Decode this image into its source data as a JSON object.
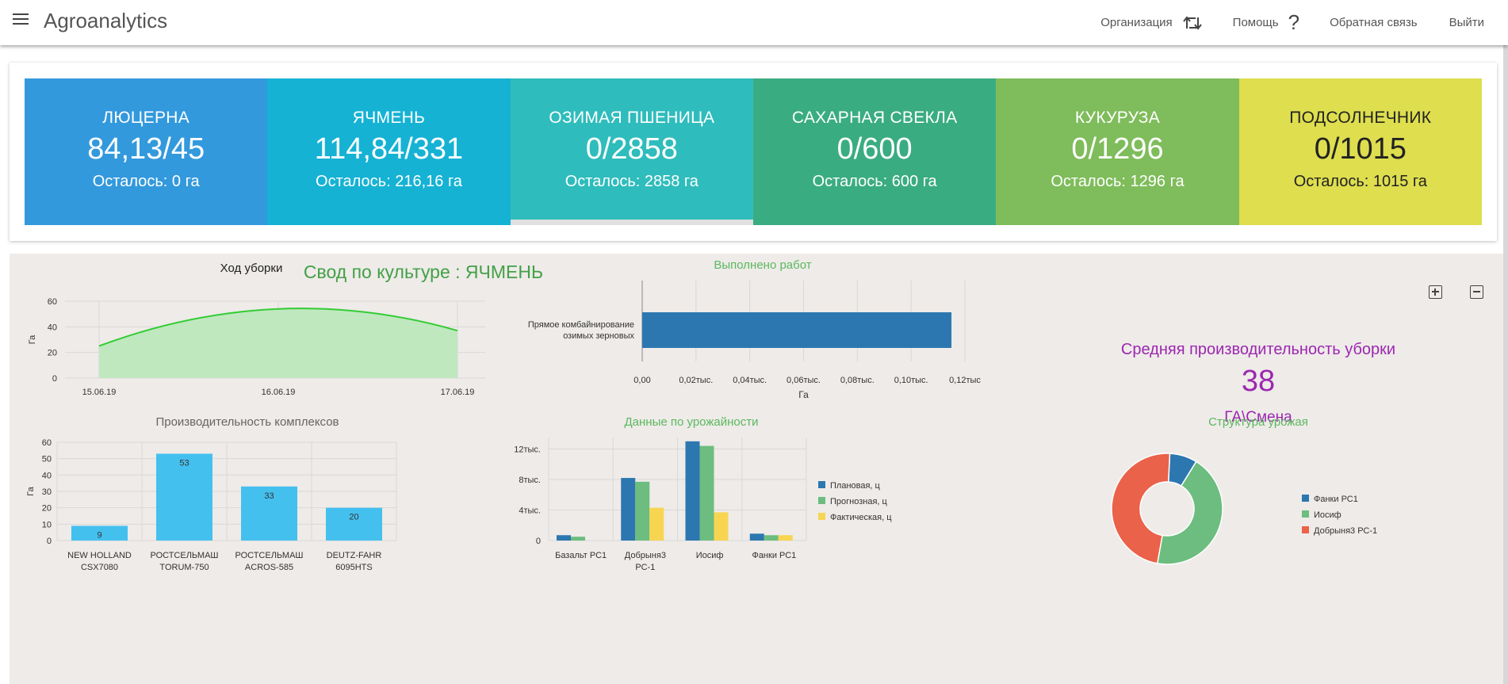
{
  "header": {
    "title": "Agroanalytics",
    "nav": {
      "org": "Организация",
      "help": "Помощь",
      "feedback": "Обратная связь",
      "exit": "Выйти"
    }
  },
  "tiles": [
    {
      "name": "ЛЮЦЕРНА",
      "value": "84,13/45",
      "rest": "Осталось: 0 га",
      "color": "#3399dd"
    },
    {
      "name": "ЯЧМЕНЬ",
      "value": "114,84/331",
      "rest": "Осталось: 216,16 га",
      "color": "#15b2d4"
    },
    {
      "name": "ОЗИМАЯ ПШЕНИЦА",
      "value": "0/2858",
      "rest": "Осталось: 2858 га",
      "color": "#2fbcbc"
    },
    {
      "name": "САХАРНАЯ СВЕКЛА",
      "value": "0/600",
      "rest": "Осталось: 600 га",
      "color": "#3aac82"
    },
    {
      "name": "КУКУРУЗА",
      "value": "0/1296",
      "rest": "Осталось: 1296 га",
      "color": "#7fbc5b"
    },
    {
      "name": "ПОДСОЛНЕЧНИК",
      "value": "0/1015",
      "rest": "Осталось: 1015 га",
      "color": "#dede4f"
    }
  ],
  "summary": {
    "title": "Свод по культуре : ЯЧМЕНЬ",
    "kpi": {
      "title": "Средняя производительность уборки",
      "value": "38",
      "unit": "ГА\\Смена"
    }
  },
  "chart_data": [
    {
      "type": "area",
      "title": "Ход уборки",
      "ylabel": "Га",
      "x": [
        "15.06.19",
        "16.06.19",
        "17.06.19"
      ],
      "y": [
        25,
        54,
        37
      ],
      "ylim": [
        0,
        60
      ],
      "yticks": [
        0,
        20,
        40,
        60
      ],
      "color": "#33cc33"
    },
    {
      "type": "bar",
      "orientation": "horizontal",
      "title": "Выполнено работ",
      "categories": [
        "Прямое комбайнирование озимых зерновых"
      ],
      "values": [
        115
      ],
      "xlabel": "Га",
      "xticks": [
        "0,00",
        "0,02тыс.",
        "0,04тыс.",
        "0,06тыс.",
        "0,08тыс.",
        "0,10тыс.",
        "0,12тыс"
      ],
      "xlim": [
        0,
        120
      ],
      "color": "#2c77b0"
    },
    {
      "type": "bar",
      "title": "Производительность комплексов",
      "ylabel": "Га",
      "categories": [
        "NEW HOLLAND CSX7080",
        "РОСТСЕЛЬМАШ TORUM-750",
        "РОСТСЕЛЬМАШ ACROS-585",
        "DEUTZ-FAHR 6095HTS"
      ],
      "values": [
        9,
        53,
        33,
        20
      ],
      "ylim": [
        0,
        60
      ],
      "yticks": [
        0,
        10,
        20,
        30,
        40,
        50,
        60
      ],
      "color": "#44c0ef"
    },
    {
      "type": "bar",
      "title": "Данные по урожайности",
      "categories": [
        "Базальт РС1",
        "Добрыня3 РС-1",
        "Иосиф",
        "Фанки РС1"
      ],
      "series": [
        {
          "name": "Плановая, ц",
          "values": [
            700,
            8200,
            13000,
            900
          ],
          "color": "#2c77b0"
        },
        {
          "name": "Прогнозная, ц",
          "values": [
            500,
            7700,
            12400,
            700
          ],
          "color": "#6cbd7f"
        },
        {
          "name": "Фактическая, ц",
          "values": [
            0,
            4300,
            3700,
            700
          ],
          "color": "#f8d551"
        }
      ],
      "ylim": [
        0,
        13500
      ],
      "yticks": [
        "0",
        "4тыс.",
        "8тыс.",
        "12тыс."
      ]
    },
    {
      "type": "pie",
      "title": "Структура урожая",
      "labels": [
        "Фанки РС1",
        "Иосиф",
        "Добрыня3 РС-1"
      ],
      "values": [
        8,
        44,
        48
      ],
      "colors": [
        "#2c77b0",
        "#6cbd7f",
        "#ea6249"
      ]
    }
  ]
}
